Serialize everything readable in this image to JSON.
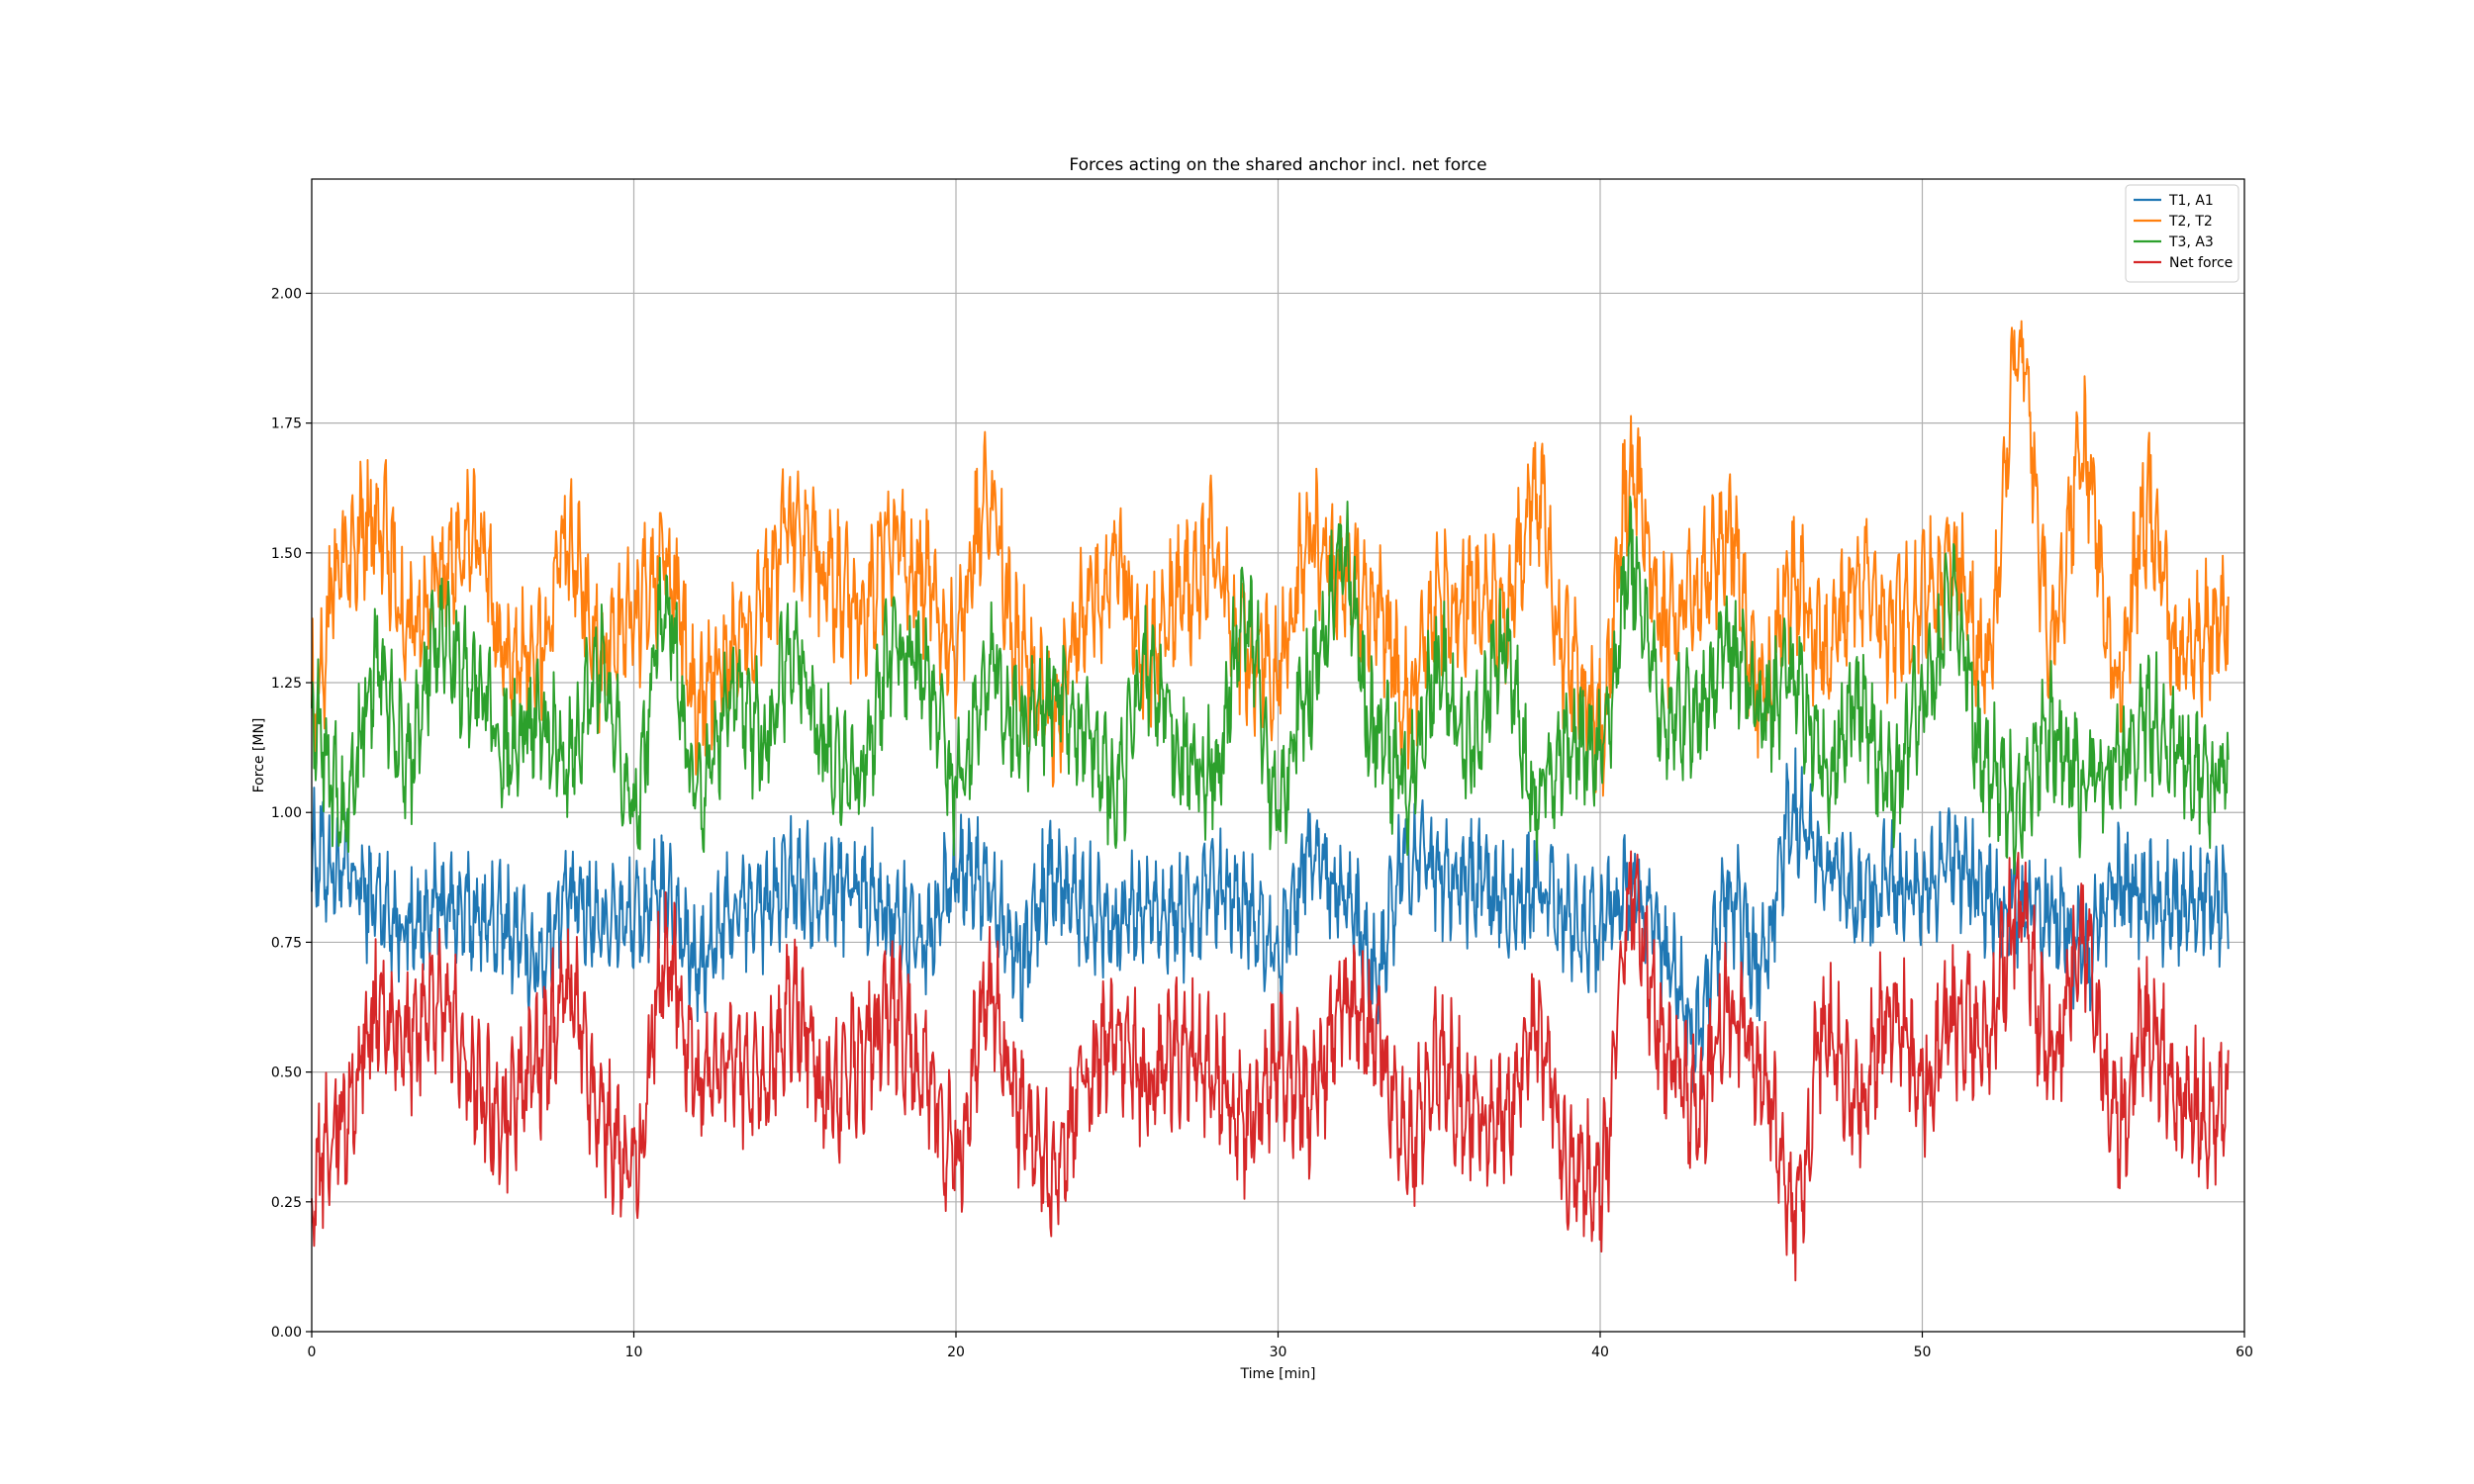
{
  "chart_data": {
    "type": "line",
    "title": "Forces acting on the shared anchor incl. net force",
    "xlabel": "Time [min]",
    "ylabel": "Force [MN]",
    "xlim": [
      0,
      60
    ],
    "ylim": [
      0,
      2.22
    ],
    "x_ticks": [
      0,
      10,
      20,
      30,
      40,
      50,
      60
    ],
    "x_tick_labels": [
      "0",
      "10",
      "20",
      "30",
      "40",
      "50",
      "60"
    ],
    "y_ticks": [
      0,
      0.25,
      0.5,
      0.75,
      1.0,
      1.25,
      1.5,
      1.75,
      2.0
    ],
    "y_tick_labels": [
      "0.00",
      "0.25",
      "0.50",
      "0.75",
      "1.00",
      "1.25",
      "1.50",
      "1.75",
      "2.00"
    ],
    "grid": true,
    "legend_position": "top-right",
    "series": [
      {
        "name": "T1, A1",
        "color": "#1f77b4",
        "x": [
          0,
          1,
          2,
          3,
          4,
          5,
          6,
          7,
          8,
          9,
          10,
          11,
          12,
          13,
          14,
          15,
          16,
          17,
          18,
          19,
          20,
          21,
          22,
          23,
          24,
          25,
          26,
          27,
          28,
          29,
          30,
          31,
          32,
          33,
          34,
          35,
          36,
          37,
          38,
          39,
          40,
          41,
          42,
          43,
          44,
          45,
          46,
          47,
          48,
          49,
          50,
          51,
          52,
          53,
          54,
          55,
          56,
          57,
          58,
          59,
          59.5
        ],
        "y": [
          0.92,
          0.88,
          0.83,
          0.78,
          0.82,
          0.8,
          0.78,
          0.72,
          0.83,
          0.8,
          0.79,
          0.84,
          0.7,
          0.8,
          0.82,
          0.87,
          0.85,
          0.86,
          0.8,
          0.74,
          0.88,
          0.86,
          0.72,
          0.88,
          0.82,
          0.79,
          0.82,
          0.8,
          0.84,
          0.82,
          0.74,
          0.92,
          0.86,
          0.68,
          0.92,
          0.88,
          0.86,
          0.82,
          0.85,
          0.8,
          0.78,
          0.86,
          0.72,
          0.58,
          0.84,
          0.7,
          1.0,
          0.9,
          0.84,
          0.86,
          0.84,
          0.9,
          0.84,
          0.82,
          0.8,
          0.72,
          0.86,
          0.84,
          0.82,
          0.84,
          0.82
        ]
      },
      {
        "name": "T2, T2",
        "color": "#ff7f0e",
        "x": [
          0,
          1,
          2,
          3,
          4,
          5,
          6,
          7,
          8,
          9,
          10,
          11,
          12,
          13,
          14,
          15,
          16,
          17,
          18,
          19,
          20,
          21,
          22,
          23,
          24,
          25,
          26,
          27,
          28,
          29,
          30,
          31,
          32,
          33,
          34,
          35,
          36,
          37,
          38,
          39,
          40,
          41,
          42,
          43,
          44,
          45,
          46,
          47,
          48,
          49,
          50,
          51,
          52,
          53,
          54,
          55,
          56,
          57,
          58,
          59,
          59.5
        ],
        "y": [
          1.22,
          1.5,
          1.58,
          1.35,
          1.45,
          1.55,
          1.3,
          1.28,
          1.52,
          1.3,
          1.38,
          1.48,
          1.2,
          1.32,
          1.4,
          1.58,
          1.45,
          1.38,
          1.52,
          1.45,
          1.32,
          1.62,
          1.3,
          1.2,
          1.38,
          1.48,
          1.3,
          1.42,
          1.5,
          1.3,
          1.28,
          1.52,
          1.45,
          1.4,
          1.22,
          1.4,
          1.42,
          1.38,
          1.62,
          1.28,
          1.18,
          1.65,
          1.35,
          1.42,
          1.55,
          1.22,
          1.45,
          1.3,
          1.45,
          1.35,
          1.42,
          1.48,
          1.28,
          1.9,
          1.35,
          1.7,
          1.25,
          1.58,
          1.3,
          1.35,
          1.38
        ]
      },
      {
        "name": "T3, A3",
        "color": "#2ca02c",
        "x": [
          0,
          1,
          2,
          3,
          4,
          5,
          6,
          7,
          8,
          9,
          10,
          11,
          12,
          13,
          14,
          15,
          16,
          17,
          18,
          19,
          20,
          21,
          22,
          23,
          24,
          25,
          26,
          27,
          28,
          29,
          30,
          31,
          32,
          33,
          34,
          35,
          36,
          37,
          38,
          39,
          40,
          41,
          42,
          43,
          44,
          45,
          46,
          47,
          48,
          49,
          50,
          51,
          52,
          53,
          54,
          55,
          56,
          57,
          58,
          59,
          59.5
        ],
        "y": [
          1.2,
          1.0,
          1.28,
          1.1,
          1.35,
          1.25,
          1.12,
          1.18,
          1.1,
          1.28,
          1.02,
          1.4,
          1.02,
          1.22,
          1.15,
          1.32,
          1.12,
          1.08,
          1.3,
          1.28,
          1.05,
          1.28,
          1.15,
          1.22,
          1.15,
          1.05,
          1.28,
          1.12,
          1.08,
          1.38,
          1.02,
          1.25,
          1.48,
          1.15,
          1.05,
          1.28,
          1.12,
          1.32,
          1.02,
          1.15,
          1.12,
          1.48,
          1.18,
          1.2,
          1.32,
          1.2,
          1.25,
          1.08,
          1.22,
          1.05,
          1.22,
          1.4,
          1.08,
          1.02,
          1.15,
          1.05,
          1.1,
          1.18,
          1.12,
          1.05,
          1.1
        ]
      },
      {
        "name": "Net force",
        "color": "#d62728",
        "x": [
          0,
          1,
          2,
          3,
          4,
          5,
          6,
          7,
          8,
          9,
          10,
          11,
          12,
          13,
          14,
          15,
          16,
          17,
          18,
          19,
          20,
          21,
          22,
          23,
          24,
          25,
          26,
          27,
          28,
          29,
          30,
          31,
          32,
          33,
          34,
          35,
          36,
          37,
          38,
          39,
          40,
          41,
          42,
          43,
          44,
          45,
          46,
          47,
          48,
          49,
          50,
          51,
          52,
          53,
          54,
          55,
          56,
          57,
          58,
          59,
          59.5
        ],
        "y": [
          0.3,
          0.42,
          0.62,
          0.55,
          0.65,
          0.48,
          0.4,
          0.52,
          0.65,
          0.4,
          0.3,
          0.72,
          0.48,
          0.52,
          0.48,
          0.62,
          0.45,
          0.52,
          0.62,
          0.48,
          0.35,
          0.65,
          0.42,
          0.3,
          0.48,
          0.58,
          0.48,
          0.55,
          0.5,
          0.4,
          0.52,
          0.45,
          0.62,
          0.58,
          0.35,
          0.52,
          0.42,
          0.4,
          0.58,
          0.32,
          0.3,
          0.85,
          0.55,
          0.42,
          0.62,
          0.5,
          0.22,
          0.58,
          0.45,
          0.62,
          0.48,
          0.6,
          0.58,
          0.8,
          0.52,
          0.75,
          0.4,
          0.58,
          0.45,
          0.42,
          0.45
        ]
      }
    ]
  }
}
